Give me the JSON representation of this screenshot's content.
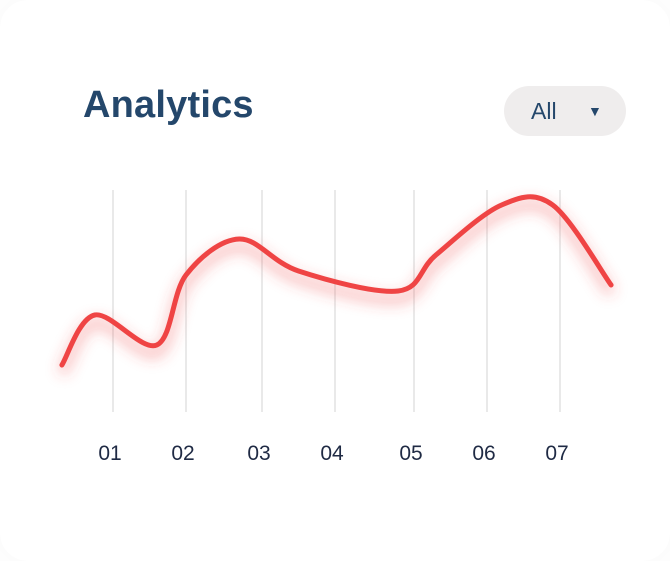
{
  "header": {
    "title": "Analytics",
    "filter": {
      "selected": "All",
      "caret_icon": "triangle-down-icon"
    }
  },
  "colors": {
    "line": "#ef4444",
    "title": "#24476b",
    "grid": "#e2e2e2",
    "filter_bg": "#efeded"
  },
  "chart_data": {
    "type": "line",
    "title": "",
    "xlabel": "",
    "ylabel": "",
    "grid": "vertical",
    "categories": [
      "01",
      "02",
      "03",
      "04",
      "05",
      "06",
      "07"
    ],
    "xlim": [
      0.3,
      7.7
    ],
    "ylim": [
      0,
      100
    ],
    "series": [
      {
        "x": [
          0.3,
          0.75,
          1.6,
          2.0,
          2.7,
          3.5,
          4.8,
          5.3,
          6.2,
          6.9,
          7.7
        ],
        "values": [
          15,
          40,
          25,
          60,
          78,
          62,
          52,
          70,
          95,
          95,
          55
        ]
      }
    ]
  }
}
